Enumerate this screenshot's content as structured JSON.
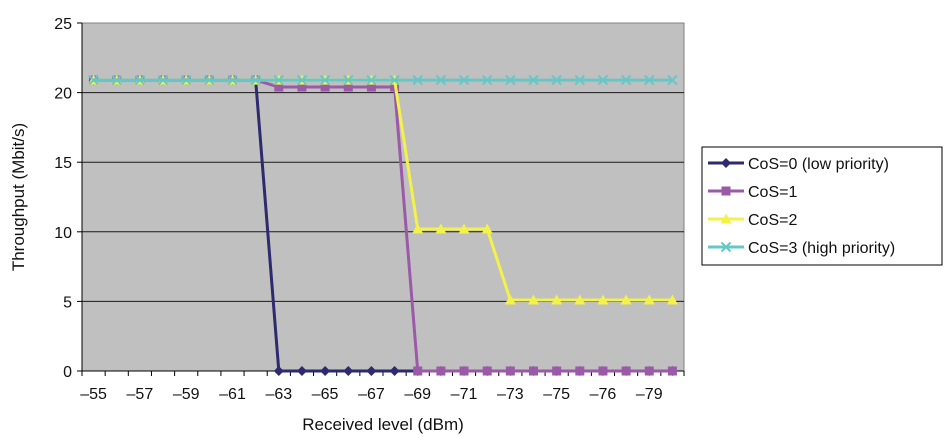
{
  "chart_data": {
    "type": "line",
    "xlabel": "Received level (dBm)",
    "ylabel": "Throughput (Mbit/s)",
    "ylim": [
      0,
      25
    ],
    "yticks": [
      "0",
      "5",
      "10",
      "15",
      "20",
      "25"
    ],
    "x": [
      -55,
      -56,
      -57,
      -58,
      -59,
      -60,
      -61,
      -62,
      -63,
      -64,
      -65,
      -66,
      -67,
      -68,
      -69,
      -70,
      -71,
      -72,
      -73,
      -74,
      -75,
      -75.5,
      -76,
      -77,
      -79,
      -80
    ],
    "xtick_labels": [
      "–55",
      "–57",
      "–59",
      "–61",
      "–63",
      "–65",
      "–67",
      "–69",
      "–71",
      "–73",
      "–75",
      "–76",
      "–79"
    ],
    "grid": "horizontal",
    "plot_background": "#c0c0c0",
    "legend_position": "right",
    "series": [
      {
        "name": "CoS=0 (low priority)",
        "color": "#2e2a6e",
        "marker": "diamond",
        "values": [
          20.9,
          20.9,
          20.9,
          20.9,
          20.9,
          20.9,
          20.9,
          20.9,
          0,
          0,
          0,
          0,
          0,
          0,
          0,
          0,
          0,
          0,
          0,
          0,
          0,
          0,
          0,
          0,
          0,
          0
        ]
      },
      {
        "name": "CoS=1",
        "color": "#9b5aa8",
        "marker": "square",
        "values": [
          20.9,
          20.9,
          20.9,
          20.9,
          20.9,
          20.9,
          20.9,
          20.9,
          20.4,
          20.4,
          20.4,
          20.4,
          20.4,
          20.4,
          0,
          0,
          0,
          0,
          0,
          0,
          0,
          0,
          0,
          0,
          0,
          0
        ]
      },
      {
        "name": "CoS=2",
        "color": "#f2f24a",
        "marker": "triangle",
        "values": [
          20.9,
          20.9,
          20.9,
          20.9,
          20.9,
          20.9,
          20.9,
          20.9,
          20.9,
          20.9,
          20.9,
          20.9,
          20.9,
          20.9,
          10.2,
          10.2,
          10.2,
          10.2,
          5.1,
          5.1,
          5.1,
          5.1,
          5.1,
          5.1,
          5.1,
          5.1
        ]
      },
      {
        "name": "CoS=3 (high priority)",
        "color": "#66c7c7",
        "marker": "x",
        "values": [
          20.9,
          20.9,
          20.9,
          20.9,
          20.9,
          20.9,
          20.9,
          20.9,
          20.9,
          20.9,
          20.9,
          20.9,
          20.9,
          20.9,
          20.9,
          20.9,
          20.9,
          20.9,
          20.9,
          20.9,
          20.9,
          20.9,
          20.9,
          20.9,
          20.9,
          20.9
        ]
      }
    ]
  }
}
